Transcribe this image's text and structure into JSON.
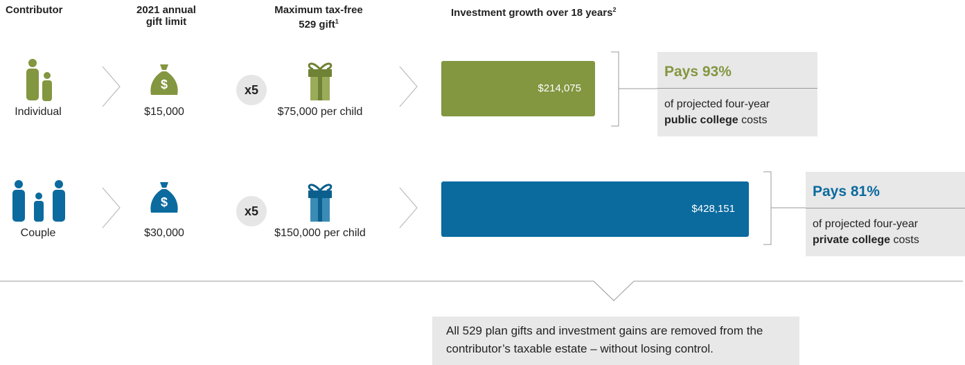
{
  "header": {
    "contributor": "Contributor",
    "gift_limit": "2021 annual gift limit",
    "max_gift": "Maximum tax-free 529 gift",
    "max_gift_note": "1",
    "growth": "Investment growth over 18 years",
    "growth_note": "2"
  },
  "rows": [
    {
      "contributor": "Individual",
      "gift_limit": "$15,000",
      "multiplier": "x5",
      "max_gift": "$75,000 per child",
      "growth": {
        "value": 214075,
        "label": "$214,075"
      },
      "color": "#839640",
      "pays": "Pays 93%",
      "pays_text": "of projected four-year",
      "pays_bold": "public college",
      "pays_end": "costs"
    },
    {
      "contributor": "Couple",
      "gift_limit": "$30,000",
      "multiplier": "x5",
      "max_gift": "$150,000 per child",
      "growth": {
        "value": 428151,
        "label": "$428,151"
      },
      "color": "#0b6a9e",
      "pays": "Pays 81%",
      "pays_text": "of projected four-year",
      "pays_bold": "private college",
      "pays_end": "costs"
    }
  ],
  "note": "All 529 plan gifts and investment gains are removed from the contributor’s taxable estate – without losing control."
}
